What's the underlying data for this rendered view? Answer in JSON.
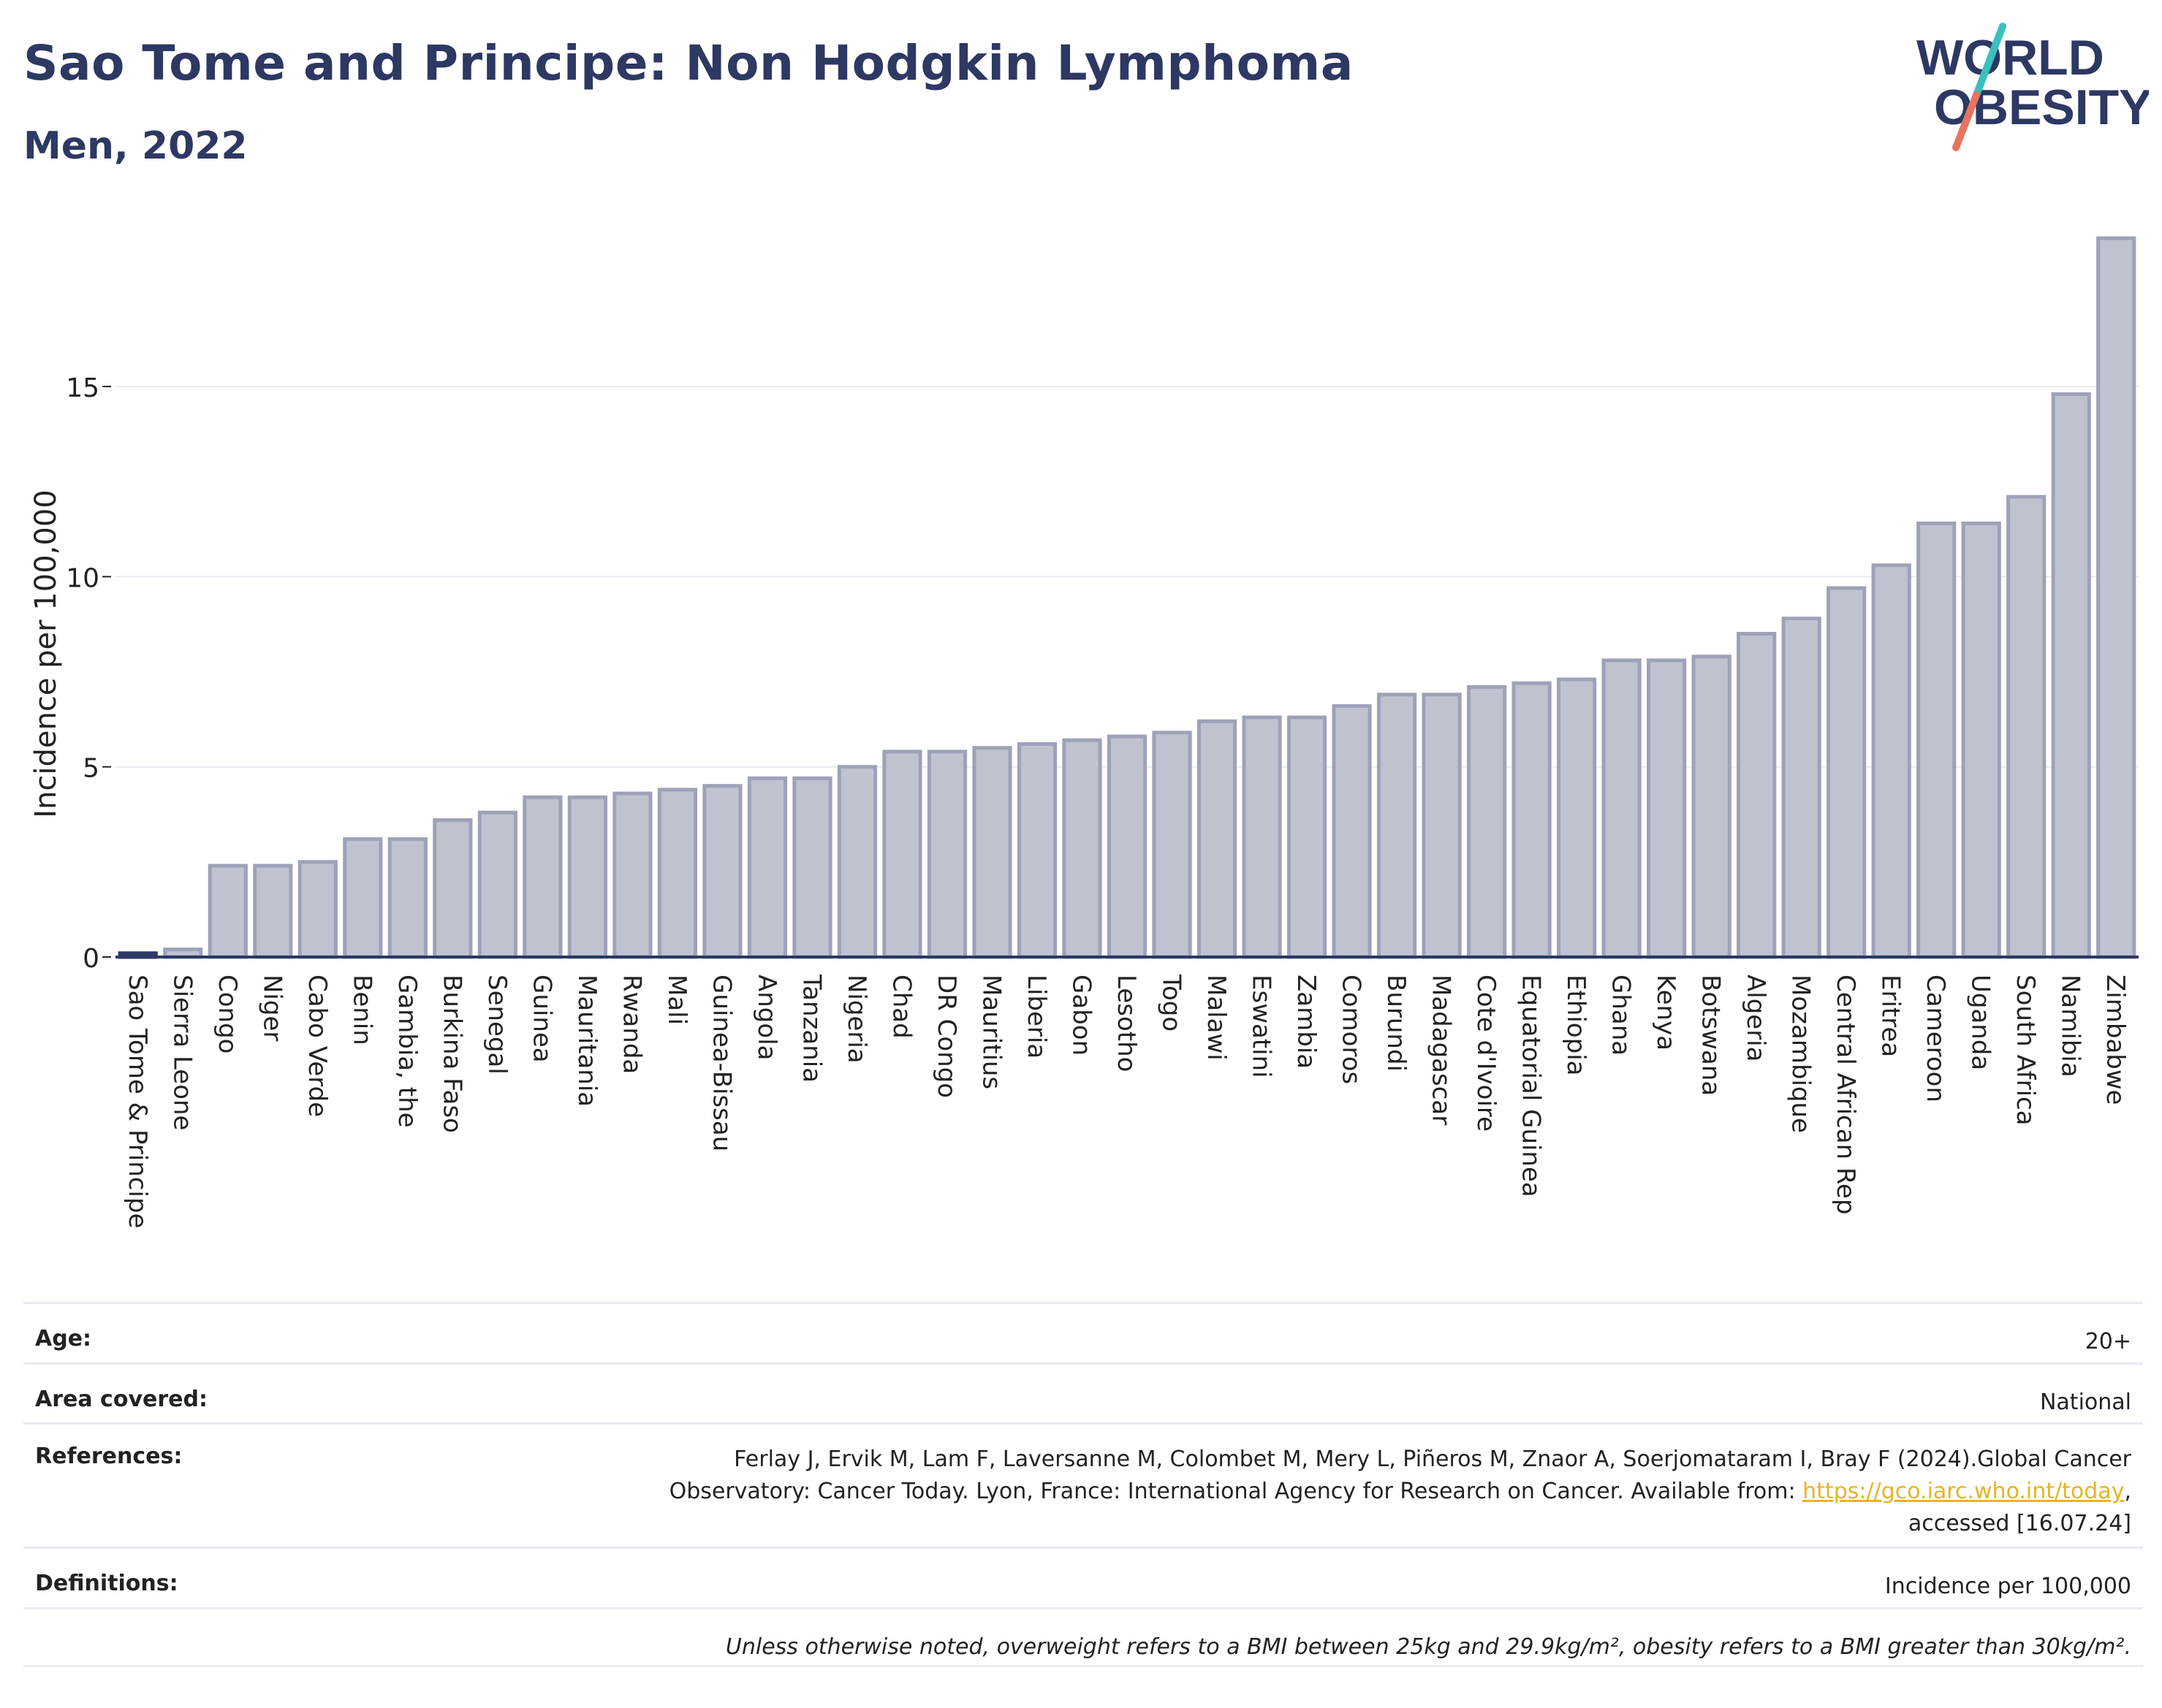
{
  "header": {
    "title": "Sao Tome and Principe: Non Hodgkin Lymphoma",
    "subtitle": "Men, 2022",
    "logo_line1": "WORLD",
    "logo_line2": "OBESITY"
  },
  "colors": {
    "bar_fill": "#bfc3d0",
    "bar_stroke": "#9da2b8",
    "highlight": "#2d3863",
    "text": "#2d3863",
    "grid": "#e7ebf1",
    "logo_teal": "#3bbfbf",
    "logo_coral": "#e8735f"
  },
  "chart_data": {
    "type": "bar",
    "title": "Sao Tome and Principe: Non Hodgkin Lymphoma",
    "subtitle": "Men, 2022",
    "ylabel": "Incidence per 100,000",
    "xlabel": "",
    "ylim": [
      0,
      19.4
    ],
    "yticks": [
      0,
      5,
      10,
      15
    ],
    "grid": true,
    "highlight": "Sao Tome & Principe",
    "categories": [
      "Sao Tome & Principe",
      "Sierra Leone",
      "Congo",
      "Niger",
      "Cabo Verde",
      "Benin",
      "Gambia, the",
      "Burkina Faso",
      "Senegal",
      "Guinea",
      "Mauritania",
      "Rwanda",
      "Mali",
      "Guinea-Bissau",
      "Angola",
      "Tanzania",
      "Nigeria",
      "Chad",
      "DR Congo",
      "Mauritius",
      "Liberia",
      "Gabon",
      "Lesotho",
      "Togo",
      "Malawi",
      "Eswatini",
      "Zambia",
      "Comoros",
      "Burundi",
      "Madagascar",
      "Cote d'Ivoire",
      "Equatorial Guinea",
      "Ethiopia",
      "Ghana",
      "Kenya",
      "Botswana",
      "Algeria",
      "Mozambique",
      "Central African Rep",
      "Eritrea",
      "Cameroon",
      "Uganda",
      "South Africa",
      "Namibia",
      "Zimbabwe"
    ],
    "values": [
      0.1,
      0.2,
      2.4,
      2.4,
      2.5,
      3.1,
      3.1,
      3.6,
      3.8,
      4.2,
      4.2,
      4.3,
      4.4,
      4.5,
      4.7,
      4.7,
      5.0,
      5.4,
      5.4,
      5.5,
      5.6,
      5.7,
      5.8,
      5.9,
      6.2,
      6.3,
      6.3,
      6.6,
      6.9,
      6.9,
      7.1,
      7.2,
      7.3,
      7.8,
      7.8,
      7.9,
      8.5,
      8.9,
      9.7,
      10.3,
      11.4,
      11.4,
      12.1,
      14.8,
      18.9
    ]
  },
  "info": {
    "age_label": "Age:",
    "age_value": "20+",
    "area_label": "Area covered:",
    "area_value": "National",
    "references_label": "References:",
    "references_line1": "Ferlay J, Ervik M, Lam F, Laversanne M, Colombet M, Mery L, Piñeros M, Znaor A, Soerjomataram I, Bray F (2024).Global Cancer",
    "references_line2_pre": "Observatory: Cancer Today. Lyon, France: International Agency for Research on Cancer. Available from: ",
    "references_link": "https://gco.iarc.who.int/today",
    "references_line2_post": ",",
    "references_line3": "accessed [16.07.24]",
    "definitions_label": "Definitions:",
    "definitions_value": "Incidence per 100,000",
    "note": "Unless otherwise noted, overweight refers to a BMI between 25kg and 29.9kg/m², obesity refers to a BMI greater than 30kg/m²."
  }
}
